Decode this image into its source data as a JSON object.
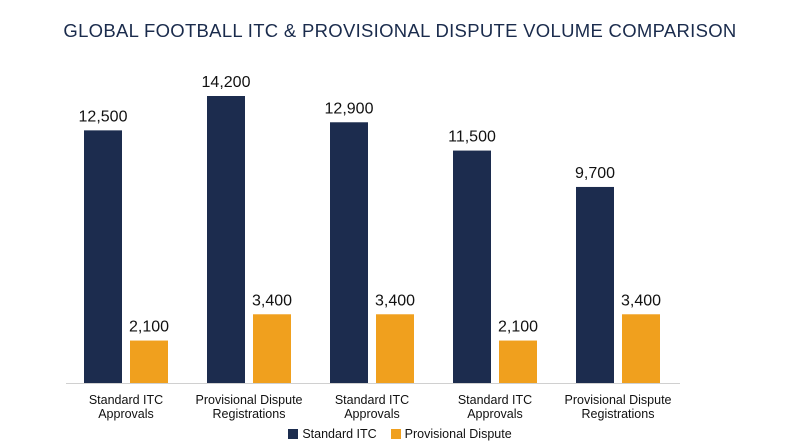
{
  "chart_data": {
    "type": "bar",
    "title": "GLOBAL FOOTBALL ITC & PROVISIONAL DISPUTE VOLUME COMPARISON",
    "categories": [
      [
        "Standard ITC",
        "Approvals"
      ],
      [
        "Provisional Dispute",
        "Registrations"
      ],
      [
        "Standard ITC",
        "Approvals"
      ],
      [
        "Standard ITC",
        "Approvals"
      ],
      [
        "Provisional Dispute",
        "Registrations"
      ]
    ],
    "series": [
      {
        "name": "Standard ITC",
        "color": "#1c2c4e",
        "values": [
          12500,
          14200,
          12900,
          11500,
          9700
        ],
        "labels": [
          "12,500",
          "14,200",
          "12,900",
          "11,500",
          "9,700"
        ]
      },
      {
        "name": "Provisional Dispute",
        "color": "#f0a01e",
        "values": [
          2100,
          3400,
          3400,
          2100,
          3400
        ],
        "labels": [
          "2,100",
          "3,400",
          "3,400",
          "2,100",
          "3,400"
        ]
      }
    ],
    "xlabel": "",
    "ylabel": "",
    "ylim": [
      0,
      15000
    ],
    "grid": false,
    "legend_position": "bottom"
  }
}
